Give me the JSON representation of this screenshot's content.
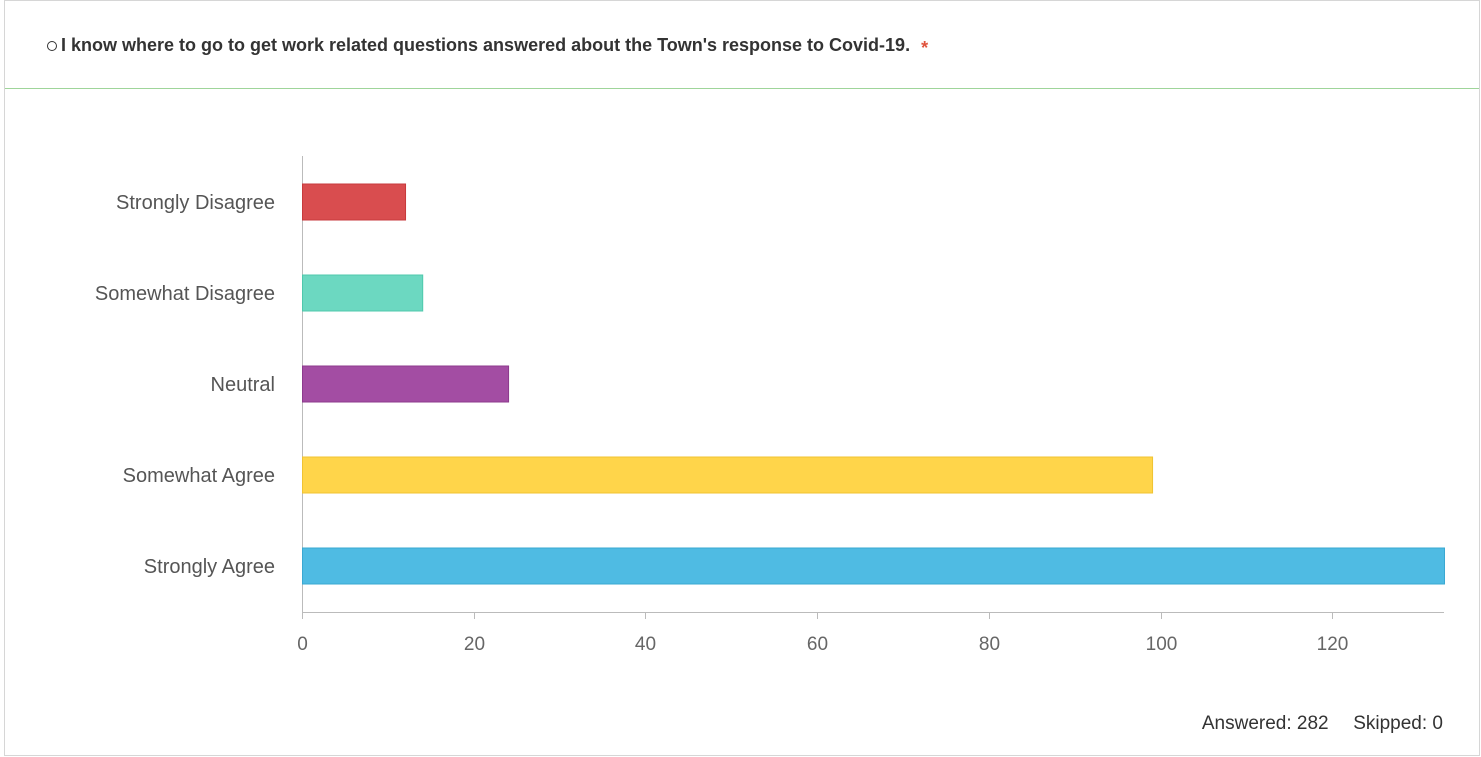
{
  "question": {
    "text": "I know where to go to get work related questions answered about the Town's response to Covid-19.",
    "required_mark": "*"
  },
  "summary": {
    "answered_label": "Answered:",
    "answered_value": "282",
    "skipped_label": "Skipped:",
    "skipped_value": "0"
  },
  "chart_data": {
    "type": "bar",
    "orientation": "horizontal",
    "categories": [
      "Strongly Disagree",
      "Somewhat Disagree",
      "Neutral",
      "Somewhat Agree",
      "Strongly Agree"
    ],
    "values": [
      12,
      14,
      24,
      99,
      133
    ],
    "colors": [
      "#d94d4f",
      "#6cd8c1",
      "#a34da3",
      "#ffd54a",
      "#4fbbe3"
    ],
    "border_colors": [
      "#c73a3c",
      "#4fc8ac",
      "#8d3a8d",
      "#f0c332",
      "#3aa8d2"
    ],
    "x_ticks": [
      0,
      20,
      40,
      60,
      80,
      100,
      120
    ],
    "xlim": [
      0,
      133
    ],
    "title": "",
    "xlabel": "",
    "ylabel": "",
    "grid": false
  }
}
